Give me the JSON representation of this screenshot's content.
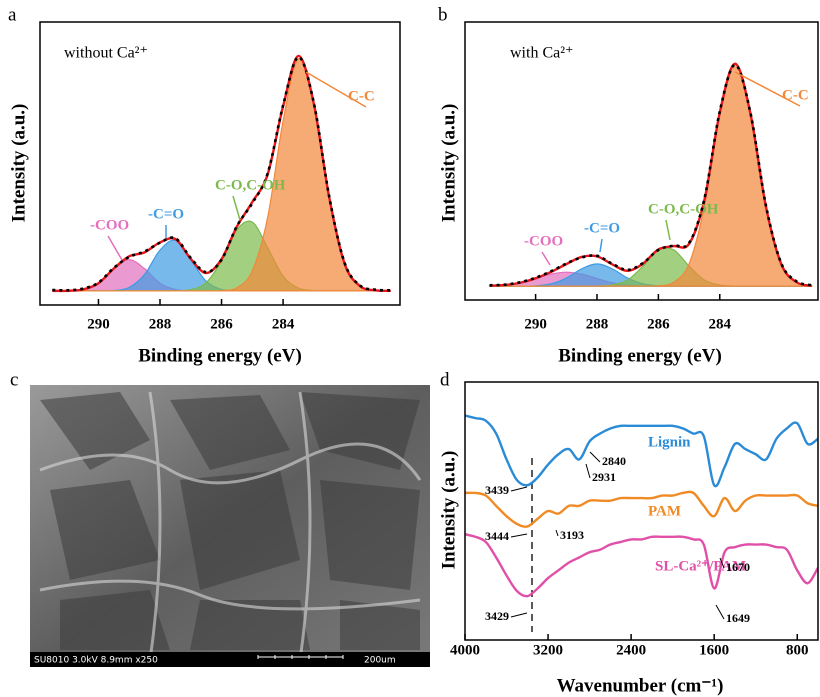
{
  "chart_data": [
    {
      "type": "line",
      "panel_label": "a",
      "title": "without Ca²⁺",
      "x_label": "Binding energy (eV)",
      "y_label": "Intensity (a.u.)",
      "xlim": [
        291.9,
        280.2
      ],
      "xticks": [
        290,
        288,
        286,
        284
      ],
      "ylim": [
        -5,
        95
      ],
      "x": [
        291.5,
        291,
        290.5,
        290,
        289.5,
        289,
        288.5,
        288,
        287.5,
        287,
        286.5,
        286,
        285.5,
        285,
        284.5,
        284,
        283.5,
        283,
        282.5,
        282,
        281.5,
        281,
        280.5
      ],
      "series": [
        {
          "name": "-COO",
          "color": "#e36fbd",
          "fill": true,
          "values": [
            0,
            0,
            0.5,
            2.7,
            7.8,
            11,
            7.8,
            2.7,
            0.5,
            0,
            0,
            0,
            0,
            0,
            0,
            0,
            0,
            0,
            0,
            0,
            0,
            0,
            0
          ]
        },
        {
          "name": "-C=O",
          "color": "#3f9be3",
          "fill": true,
          "values": [
            0,
            0,
            0,
            0,
            0.1,
            1.2,
            5.8,
            14.4,
            17.8,
            10.9,
            3.4,
            0.5,
            0,
            0,
            0,
            0,
            0,
            0,
            0,
            0,
            0,
            0,
            0
          ]
        },
        {
          "name": "C-O,C-OH",
          "color": "#7cba4c",
          "fill": true,
          "values": [
            0,
            0,
            0,
            0,
            0,
            0,
            0,
            0,
            0,
            0.4,
            2.9,
            10.6,
            21.6,
            24.3,
            15.2,
            5.2,
            1.0,
            0.1,
            0,
            0,
            0,
            0,
            0
          ]
        },
        {
          "name": "C-C",
          "color": "#f2883a",
          "fill": true,
          "values": [
            0,
            0,
            0,
            0,
            0,
            0,
            0,
            0,
            0,
            0,
            0,
            0.1,
            1.1,
            7.1,
            26,
            60,
            82,
            66,
            33,
            9.6,
            1.7,
            0.2,
            0
          ]
        },
        {
          "color": "#e8161b",
          "values": [
            0,
            0,
            0.5,
            2.7,
            7.9,
            12.2,
            13.6,
            17.1,
            18.3,
            11.3,
            6.3,
            11.2,
            22.7,
            31.4,
            41.2,
            65.2,
            83.0,
            66.1,
            33,
            9.6,
            1.7,
            0.2,
            0
          ]
        },
        {
          "color": "#000000",
          "dash": true,
          "values": [
            0.3,
            0.2,
            0.8,
            2.9,
            8.1,
            12.0,
            13.9,
            17.0,
            18.6,
            11.6,
            6.6,
            11.0,
            22.9,
            31.0,
            41.5,
            65.5,
            82.6,
            66.4,
            33.3,
            9.9,
            1.9,
            0.4,
            0.2
          ]
        }
      ]
    },
    {
      "type": "line",
      "panel_label": "b",
      "title": "with Ca²⁺",
      "x_label": "Binding energy (eV)",
      "y_label": "Intensity (a.u.)",
      "xlim": [
        292.3,
        280.8
      ],
      "xticks": [
        290,
        288,
        286,
        284
      ],
      "ylim": [
        -5,
        95
      ],
      "x": [
        291.5,
        291,
        290.5,
        290,
        289.5,
        289,
        288.5,
        288,
        287.5,
        287,
        286.5,
        286,
        285.5,
        285,
        284.5,
        284,
        283.5,
        283,
        282.5,
        282,
        281.5,
        281
      ],
      "series": [
        {
          "name": "-COO",
          "color": "#e36fbd",
          "fill": true,
          "values": [
            0.1,
            0.4,
            1.2,
            2.7,
            4.3,
            5,
            4.3,
            2.7,
            1.2,
            0.4,
            0.1,
            0,
            0,
            0,
            0,
            0,
            0,
            0,
            0,
            0,
            0,
            0
          ]
        },
        {
          "name": "-C=O",
          "color": "#3f9be3",
          "fill": true,
          "values": [
            0,
            0,
            0,
            0.1,
            0.8,
            2.9,
            6.2,
            8,
            6.2,
            2.9,
            0.8,
            0.1,
            0,
            0,
            0,
            0,
            0,
            0,
            0,
            0,
            0,
            0
          ]
        },
        {
          "name": "C-O,C-OH",
          "color": "#7cba4c",
          "fill": true,
          "values": [
            0,
            0,
            0,
            0,
            0,
            0,
            0,
            0,
            0.4,
            2.2,
            7.2,
            13,
            13,
            7.2,
            2.2,
            0.4,
            0,
            0,
            0,
            0,
            0,
            0
          ]
        },
        {
          "name": "C-C",
          "color": "#f2883a",
          "fill": true,
          "values": [
            0,
            0,
            0,
            0,
            0,
            0,
            0,
            0,
            0,
            0,
            0,
            0.1,
            1.4,
            8,
            28.8,
            62,
            80,
            62,
            28.8,
            8,
            1.4,
            0.1
          ]
        },
        {
          "color": "#e8161b",
          "values": [
            0.1,
            0.4,
            1.2,
            2.8,
            5.1,
            7.9,
            10.5,
            10.7,
            7.8,
            5.5,
            8.1,
            13.2,
            14.4,
            15.2,
            31.0,
            62.4,
            80,
            62,
            28.8,
            8,
            1.4,
            0.1
          ]
        },
        {
          "color": "#000000",
          "dash": true,
          "values": [
            0.3,
            0.5,
            1.4,
            3.0,
            5.3,
            8.1,
            10.3,
            10.9,
            8.0,
            5.8,
            8.3,
            13.0,
            14.6,
            15.5,
            31.4,
            62.8,
            79.6,
            62.3,
            29.2,
            8.3,
            1.7,
            0.3
          ]
        }
      ]
    },
    {
      "type": "line",
      "panel_label": "d",
      "x_label": "Wavenumber (cm⁻¹)",
      "y_label": "Intensity (a.u.)",
      "xlim": [
        4000,
        600
      ],
      "xticks": [
        4000,
        3200,
        2400,
        1600,
        800
      ],
      "ylim": [
        0,
        100
      ],
      "x": [
        4000,
        3900,
        3800,
        3700,
        3600,
        3500,
        3400,
        3300,
        3200,
        3100,
        3000,
        2900,
        2800,
        2700,
        2600,
        2500,
        2400,
        2300,
        2200,
        2100,
        2000,
        1900,
        1800,
        1700,
        1600,
        1500,
        1400,
        1300,
        1200,
        1100,
        1000,
        900,
        800,
        700,
        600
      ],
      "series": [
        {
          "name": "Lignin",
          "color": "#2a8bd6",
          "values": [
            87,
            86,
            85,
            80,
            70,
            62,
            60,
            63,
            68,
            72,
            74,
            70,
            77,
            80,
            82,
            83,
            83,
            83,
            83,
            83,
            83,
            82,
            80,
            79,
            60,
            67,
            76,
            74,
            72,
            70,
            78,
            82,
            84,
            76,
            78
          ]
        },
        {
          "name": "PAM",
          "color": "#f08a24",
          "values": [
            57,
            57,
            56,
            52,
            48,
            45,
            44,
            47,
            50,
            49,
            52,
            52,
            54,
            54,
            54,
            55,
            55,
            55,
            55,
            56,
            56,
            57,
            57,
            52,
            48,
            55,
            50,
            54,
            56,
            56,
            56,
            56,
            56,
            53,
            52
          ]
        },
        {
          "name": "SL-Ca²⁺/PAM",
          "color": "#e050a8",
          "values": [
            41,
            40,
            38,
            32,
            25,
            19,
            17,
            20,
            24,
            27,
            30,
            32,
            34,
            35,
            37,
            38,
            39,
            39,
            40,
            40,
            40,
            40,
            39,
            37,
            20,
            34,
            36,
            37,
            37,
            37,
            36,
            35,
            27,
            22,
            28
          ]
        }
      ],
      "annotations": [
        "3439",
        "2931",
        "2840",
        "3193",
        "3444",
        "1670",
        "3429",
        "1649"
      ]
    }
  ],
  "image_panel": {
    "panel_label": "c",
    "caption": "SU8010 3.0kV 8.9mm x250",
    "scale_bar": "200um"
  }
}
